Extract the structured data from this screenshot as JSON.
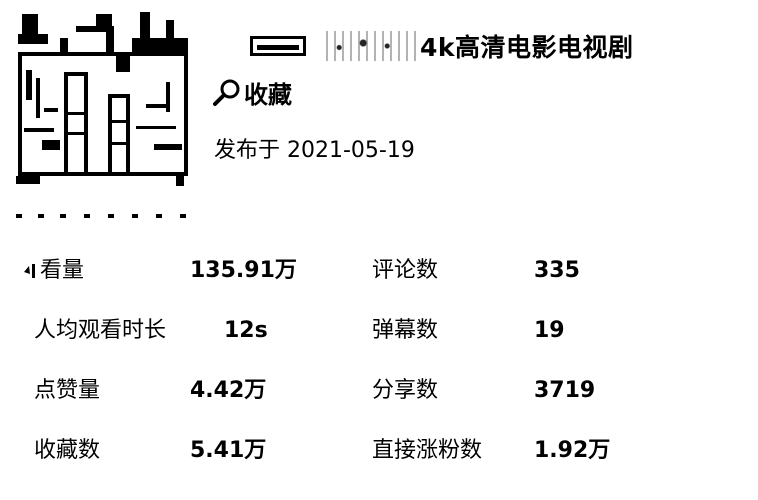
{
  "video": {
    "title_visible": "4k高清电影电视剧",
    "favorite_label": "收藏",
    "published": "发布于 2021-05-19"
  },
  "stats": {
    "left": [
      {
        "label": "看量",
        "value": "135.91万"
      },
      {
        "label": "人均观看时长",
        "value": "12s"
      },
      {
        "label": "点赞量",
        "value": "4.42万"
      },
      {
        "label": "收藏数",
        "value": "5.41万"
      }
    ],
    "right": [
      {
        "label": "评论数",
        "value": "335"
      },
      {
        "label": "弹幕数",
        "value": "19"
      },
      {
        "label": "分享数",
        "value": "3719"
      },
      {
        "label": "直接涨粉数",
        "value": "1.92万"
      }
    ]
  },
  "icons": {
    "thumbnail": "video-thumbnail",
    "favorite": "magnifier-icon",
    "redaction": "redacted-text"
  },
  "colors": {
    "text": "#000000",
    "background": "#ffffff"
  }
}
